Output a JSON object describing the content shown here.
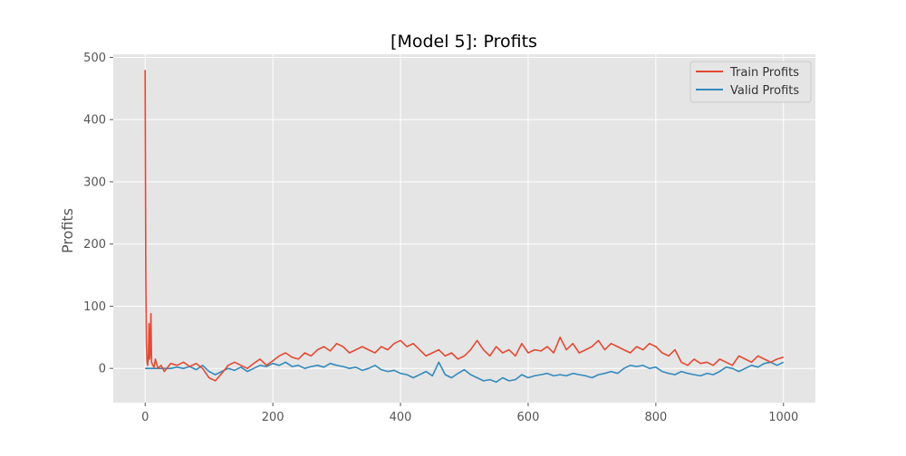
{
  "chart_data": {
    "type": "line",
    "title": "[Model 5]: Profits",
    "xlabel": "",
    "ylabel": "Profits",
    "xlim": [
      -50,
      1050
    ],
    "ylim": [
      -55,
      505
    ],
    "x_ticks": [
      0,
      200,
      400,
      600,
      800,
      1000
    ],
    "y_ticks": [
      0,
      100,
      200,
      300,
      400,
      500
    ],
    "grid": true,
    "legend_position": "top-right",
    "background_color": "#e5e5e5",
    "grid_color": "#ffffff",
    "series": [
      {
        "name": "Train Profits",
        "color": "#e24a33",
        "x": [
          0,
          1,
          2,
          3,
          4,
          5,
          6,
          7,
          8,
          9,
          10,
          12,
          14,
          16,
          20,
          25,
          30,
          40,
          50,
          60,
          70,
          80,
          90,
          100,
          110,
          120,
          130,
          140,
          150,
          160,
          170,
          180,
          190,
          200,
          210,
          220,
          230,
          240,
          250,
          260,
          270,
          280,
          290,
          300,
          310,
          320,
          330,
          340,
          350,
          360,
          370,
          380,
          390,
          400,
          410,
          420,
          430,
          440,
          450,
          460,
          470,
          480,
          490,
          500,
          510,
          520,
          530,
          540,
          550,
          560,
          570,
          580,
          590,
          600,
          610,
          620,
          630,
          640,
          650,
          660,
          670,
          680,
          690,
          700,
          710,
          720,
          730,
          740,
          750,
          760,
          770,
          780,
          790,
          800,
          810,
          820,
          830,
          840,
          850,
          860,
          870,
          880,
          890,
          900,
          910,
          920,
          930,
          940,
          950,
          960,
          970,
          980,
          990,
          1000
        ],
        "y": [
          480,
          150,
          40,
          10,
          5,
          20,
          72,
          15,
          30,
          88,
          10,
          5,
          2,
          15,
          0,
          5,
          -5,
          8,
          5,
          10,
          3,
          8,
          0,
          -15,
          -20,
          -8,
          5,
          10,
          5,
          0,
          8,
          15,
          5,
          12,
          20,
          25,
          18,
          15,
          25,
          20,
          30,
          35,
          28,
          40,
          35,
          25,
          30,
          35,
          30,
          25,
          35,
          30,
          40,
          45,
          35,
          40,
          30,
          20,
          25,
          30,
          20,
          25,
          15,
          20,
          30,
          45,
          30,
          20,
          35,
          25,
          30,
          20,
          40,
          25,
          30,
          28,
          35,
          25,
          50,
          30,
          40,
          25,
          30,
          35,
          45,
          30,
          40,
          35,
          30,
          25,
          35,
          30,
          40,
          35,
          25,
          20,
          30,
          10,
          5,
          15,
          8,
          10,
          5,
          15,
          10,
          5,
          20,
          15,
          10,
          20,
          15,
          10,
          15,
          18
        ]
      },
      {
        "name": "Valid Profits",
        "color": "#348abd",
        "x": [
          0,
          10,
          20,
          30,
          40,
          50,
          60,
          70,
          80,
          90,
          100,
          110,
          120,
          130,
          140,
          150,
          160,
          170,
          180,
          190,
          200,
          210,
          220,
          230,
          240,
          250,
          260,
          270,
          280,
          290,
          300,
          310,
          320,
          330,
          340,
          350,
          360,
          370,
          380,
          390,
          400,
          410,
          420,
          430,
          440,
          450,
          460,
          470,
          480,
          490,
          500,
          510,
          520,
          530,
          540,
          550,
          560,
          570,
          580,
          590,
          600,
          610,
          620,
          630,
          640,
          650,
          660,
          670,
          680,
          690,
          700,
          710,
          720,
          730,
          740,
          750,
          760,
          770,
          780,
          790,
          800,
          810,
          820,
          830,
          840,
          850,
          860,
          870,
          880,
          890,
          900,
          910,
          920,
          930,
          940,
          950,
          960,
          970,
          980,
          990,
          1000
        ],
        "y": [
          0,
          0,
          0,
          0,
          0,
          2,
          0,
          3,
          -2,
          5,
          -5,
          -10,
          -5,
          0,
          -3,
          2,
          -5,
          0,
          5,
          3,
          8,
          5,
          10,
          3,
          5,
          0,
          3,
          5,
          2,
          8,
          5,
          3,
          0,
          2,
          -3,
          0,
          5,
          -2,
          -5,
          -3,
          -8,
          -10,
          -15,
          -10,
          -5,
          -12,
          10,
          -10,
          -15,
          -8,
          -2,
          -10,
          -15,
          -20,
          -18,
          -22,
          -15,
          -20,
          -18,
          -10,
          -15,
          -12,
          -10,
          -8,
          -12,
          -10,
          -12,
          -8,
          -10,
          -12,
          -15,
          -10,
          -8,
          -5,
          -8,
          0,
          5,
          3,
          5,
          0,
          2,
          -5,
          -8,
          -10,
          -5,
          -8,
          -10,
          -12,
          -8,
          -10,
          -5,
          2,
          0,
          -5,
          0,
          5,
          2,
          8,
          10,
          5,
          10
        ]
      }
    ]
  }
}
